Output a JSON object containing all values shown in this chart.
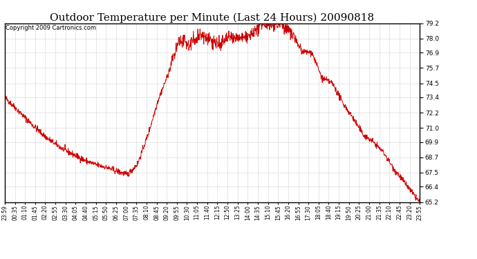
{
  "title": "Outdoor Temperature per Minute (Last 24 Hours) 20090818",
  "copyright": "Copyright 2009 Cartronics.com",
  "ylim": [
    65.2,
    79.2
  ],
  "yticks": [
    65.2,
    66.4,
    67.5,
    68.7,
    69.9,
    71.0,
    72.2,
    73.4,
    74.5,
    75.7,
    76.9,
    78.0,
    79.2
  ],
  "line_color": "#cc0000",
  "bg_color": "#ffffff",
  "grid_color": "#b0b0b0",
  "title_fontsize": 11,
  "copyright_fontsize": 6,
  "x_labels": [
    "23:59",
    "00:35",
    "01:10",
    "01:45",
    "02:20",
    "02:55",
    "03:30",
    "04:05",
    "04:40",
    "05:15",
    "05:50",
    "06:25",
    "07:00",
    "07:35",
    "08:10",
    "08:45",
    "09:20",
    "09:55",
    "10:30",
    "11:05",
    "11:40",
    "12:15",
    "12:50",
    "13:25",
    "14:00",
    "14:35",
    "15:10",
    "15:45",
    "16:20",
    "16:55",
    "17:30",
    "18:05",
    "18:40",
    "19:15",
    "19:50",
    "20:25",
    "21:00",
    "21:35",
    "22:10",
    "22:45",
    "23:20",
    "23:55"
  ],
  "control_points_x": [
    0,
    36,
    71,
    107,
    142,
    178,
    213,
    249,
    284,
    320,
    355,
    391,
    426,
    461,
    497,
    532,
    568,
    603,
    639,
    674,
    710,
    745,
    781,
    816,
    852,
    887,
    923,
    958,
    994,
    1029,
    1065,
    1100,
    1136,
    1171,
    1207,
    1242,
    1278,
    1313,
    1349,
    1384,
    1420,
    1439
  ],
  "control_points_y": [
    73.4,
    72.6,
    71.8,
    71.0,
    70.3,
    69.7,
    69.2,
    68.8,
    68.4,
    68.1,
    67.9,
    67.6,
    67.35,
    68.2,
    70.5,
    73.2,
    75.3,
    77.8,
    77.5,
    78.3,
    78.0,
    77.5,
    78.1,
    78.0,
    78.2,
    79.0,
    79.2,
    79.15,
    78.5,
    77.0,
    76.9,
    74.9,
    74.5,
    73.0,
    71.8,
    70.5,
    69.9,
    69.1,
    67.8,
    66.8,
    65.7,
    65.2
  ],
  "noise_seed": 42,
  "noise_scale_base": 0.12,
  "noise_scale_peak": 0.35
}
